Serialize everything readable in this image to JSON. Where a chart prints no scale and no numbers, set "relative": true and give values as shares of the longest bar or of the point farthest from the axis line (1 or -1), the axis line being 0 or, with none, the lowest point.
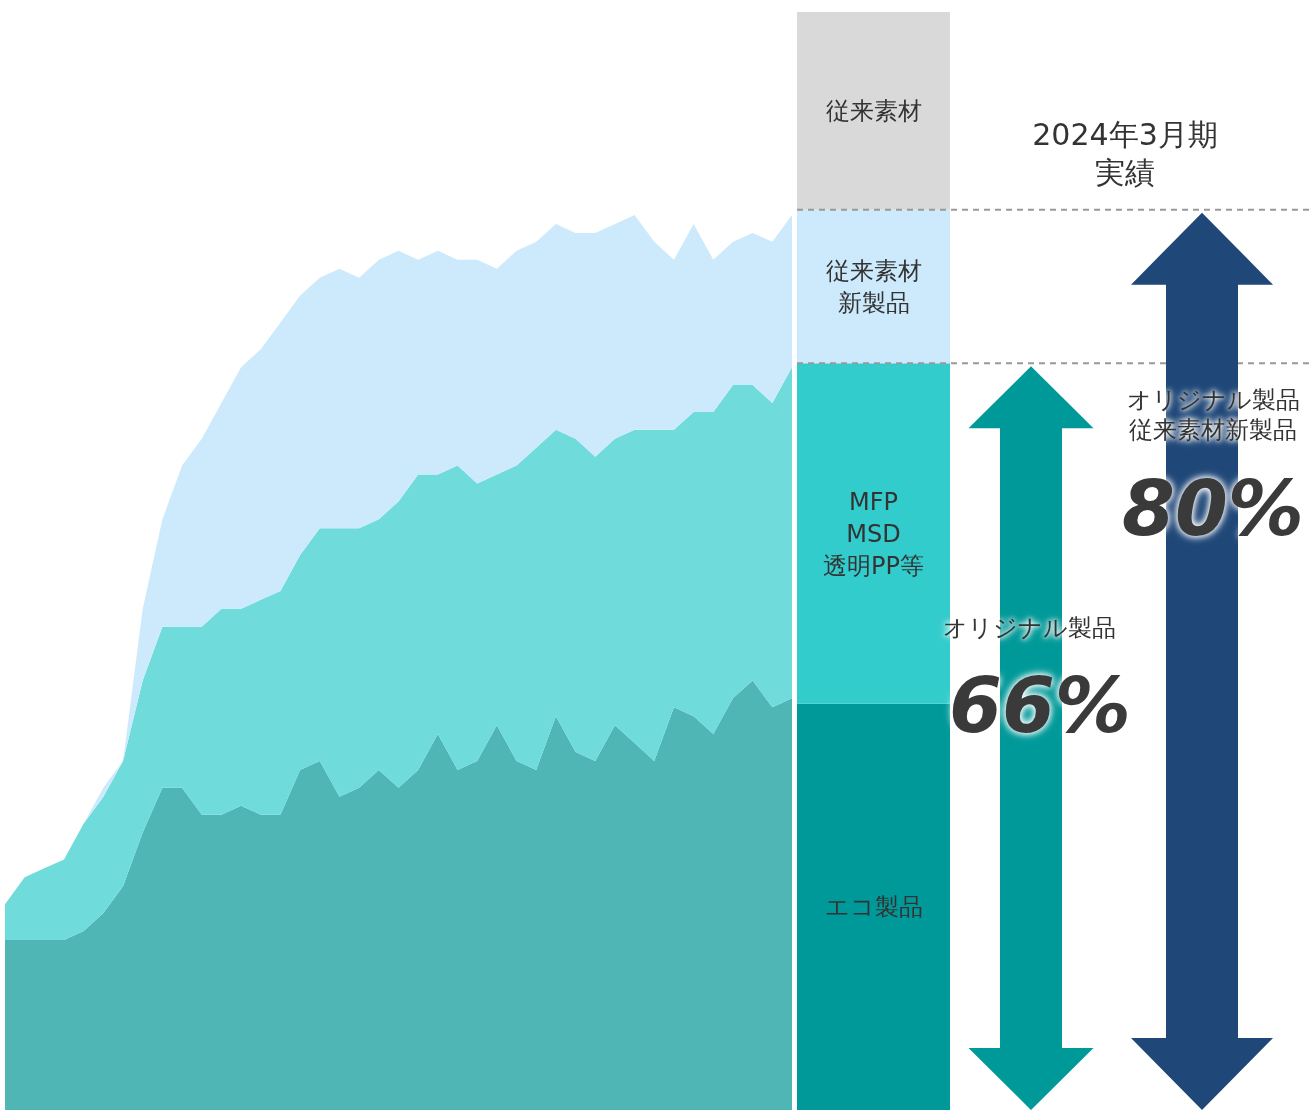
{
  "chart_data": [
    {
      "type": "area",
      "stacked": true,
      "relative": true,
      "legend": false,
      "categories": [
        null,
        null,
        null,
        null,
        null,
        null,
        null,
        null,
        null,
        null,
        null,
        null,
        null,
        null,
        null,
        null,
        null,
        null,
        null,
        null,
        null,
        null,
        null,
        null,
        null,
        null,
        null,
        null,
        null,
        null,
        null,
        null,
        null,
        null,
        null,
        null,
        null,
        null,
        null,
        null,
        null
      ],
      "series": [
        {
          "color": "#4fb5b5",
          "values": [
            0.19,
            0.19,
            0.19,
            0.19,
            0.2,
            0.22,
            0.25,
            0.31,
            0.36,
            0.36,
            0.33,
            0.33,
            0.34,
            0.33,
            0.33,
            0.38,
            0.39,
            0.35,
            0.36,
            0.38,
            0.36,
            0.38,
            0.42,
            0.38,
            0.39,
            0.43,
            0.39,
            0.38,
            0.44,
            0.4,
            0.39,
            0.43,
            0.41,
            0.39,
            0.45,
            0.44,
            0.42,
            0.46,
            0.48,
            0.45,
            0.46
          ]
        },
        {
          "color": "#6fdbdb",
          "values": [
            0.04,
            0.07,
            0.08,
            0.09,
            0.12,
            0.13,
            0.14,
            0.17,
            0.18,
            0.18,
            0.21,
            0.23,
            0.22,
            0.24,
            0.25,
            0.24,
            0.26,
            0.3,
            0.29,
            0.28,
            0.32,
            0.33,
            0.29,
            0.34,
            0.31,
            0.28,
            0.33,
            0.36,
            0.32,
            0.35,
            0.34,
            0.32,
            0.35,
            0.37,
            0.31,
            0.34,
            0.36,
            0.35,
            0.33,
            0.34,
            0.37
          ]
        },
        {
          "color": "#cdeafc",
          "values": [
            0,
            0,
            0,
            0,
            0,
            0.01,
            0,
            0.08,
            0.12,
            0.18,
            0.21,
            0.23,
            0.27,
            0.28,
            0.3,
            0.29,
            0.28,
            0.29,
            0.28,
            0.29,
            0.28,
            0.24,
            0.25,
            0.23,
            0.25,
            0.23,
            0.24,
            0.23,
            0.23,
            0.23,
            0.25,
            0.24,
            0.24,
            0.21,
            0.19,
            0.21,
            0.17,
            0.16,
            0.17,
            0.18,
            0.17
          ]
        }
      ]
    },
    {
      "type": "bar",
      "stacked": true,
      "relative": true,
      "legend": false,
      "categories": [
        null
      ],
      "series": [
        {
          "name": "エコ製品",
          "color": "#009999",
          "values": [
            0.37
          ]
        },
        {
          "name": "MFP\nMSD\n透明PP等",
          "color": "#33cccc",
          "values": [
            0.31
          ]
        },
        {
          "name": "従来素材新製品",
          "color": "#cdeafc",
          "values": [
            0.14
          ]
        },
        {
          "name": "従来素材",
          "color": "#d9d9d9",
          "values": [
            0.18
          ]
        }
      ],
      "ref_lines": [
        {
          "axis": "y",
          "value": 0.68,
          "color": "#999999",
          "line_style": "dashed"
        },
        {
          "axis": "y",
          "value": 0.82,
          "color": "#999999",
          "line_style": "dashed"
        }
      ],
      "annotations": [
        "2024年3月期実績",
        "オリジナル製品",
        "66%",
        "オリジナル製品従来素材新製品",
        "80%"
      ]
    }
  ]
}
